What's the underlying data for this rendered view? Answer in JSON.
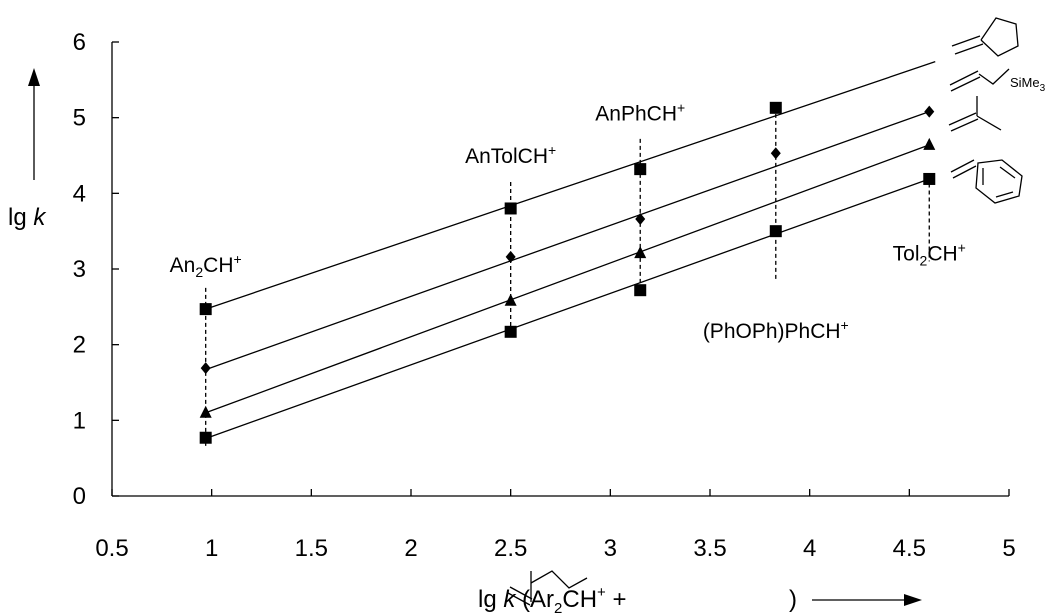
{
  "chart_data": {
    "type": "scatter",
    "xlim": [
      0.5,
      5
    ],
    "ylim": [
      0,
      6
    ],
    "x_ticks": [
      "0.5",
      "1",
      "1.5",
      "2",
      "2.5",
      "3",
      "3.5",
      "4",
      "4.5",
      "5"
    ],
    "y_ticks": [
      "0",
      "1",
      "2",
      "3",
      "4",
      "5",
      "6"
    ],
    "ylabel": {
      "prefix": "lg ",
      "var": "k"
    },
    "xlabel": {
      "prefix": "lg ",
      "var": "k",
      "middle": " (Ar",
      "sub": "2",
      "rest": "CH",
      "sup": "+",
      "plus": " +",
      "close": ")"
    },
    "categories": [
      {
        "x": 0.97,
        "base": "An",
        "sub": "2",
        "tail": "CH",
        "sup": "+"
      },
      {
        "x": 2.5,
        "base": "AnTolCH",
        "sub": "",
        "tail": "",
        "sup": "+"
      },
      {
        "x": 3.15,
        "base": "AnPhCH",
        "sub": "",
        "tail": "",
        "sup": "+"
      },
      {
        "x": 3.83,
        "base": "(PhOPh)PhCH",
        "sub": "",
        "tail": "",
        "sup": "+"
      },
      {
        "x": 4.6,
        "base": "Tol",
        "sub": "2",
        "tail": "CH",
        "sup": "+"
      }
    ],
    "structure_labels": {
      "silyl": "SiMe",
      "silyl_sub": "3"
    },
    "series": [
      {
        "marker": "square",
        "points": [
          [
            0.97,
            2.47
          ],
          [
            2.5,
            3.8
          ],
          [
            3.15,
            4.32
          ],
          [
            3.83,
            5.13
          ]
        ],
        "fit": [
          [
            0.97,
            2.47
          ],
          [
            4.63,
            5.74
          ]
        ]
      },
      {
        "marker": "diamond",
        "points": [
          [
            0.97,
            1.69
          ],
          [
            2.5,
            3.16
          ],
          [
            3.15,
            3.66
          ],
          [
            3.83,
            4.53
          ],
          [
            4.6,
            5.08
          ]
        ],
        "fit": [
          [
            0.97,
            1.67
          ],
          [
            4.6,
            5.08
          ]
        ]
      },
      {
        "marker": "triangle",
        "points": [
          [
            0.97,
            1.1
          ],
          [
            2.5,
            2.58
          ],
          [
            3.15,
            3.21
          ],
          [
            4.6,
            4.64
          ]
        ],
        "fit": [
          [
            0.97,
            1.1
          ],
          [
            4.6,
            4.64
          ]
        ]
      },
      {
        "marker": "square",
        "points": [
          [
            0.97,
            0.77
          ],
          [
            2.5,
            2.17
          ],
          [
            3.15,
            2.72
          ],
          [
            3.83,
            3.5
          ],
          [
            4.6,
            4.19
          ]
        ],
        "fit": [
          [
            0.97,
            0.76
          ],
          [
            4.6,
            4.19
          ]
        ]
      }
    ],
    "grid": false,
    "legend": "none"
  }
}
